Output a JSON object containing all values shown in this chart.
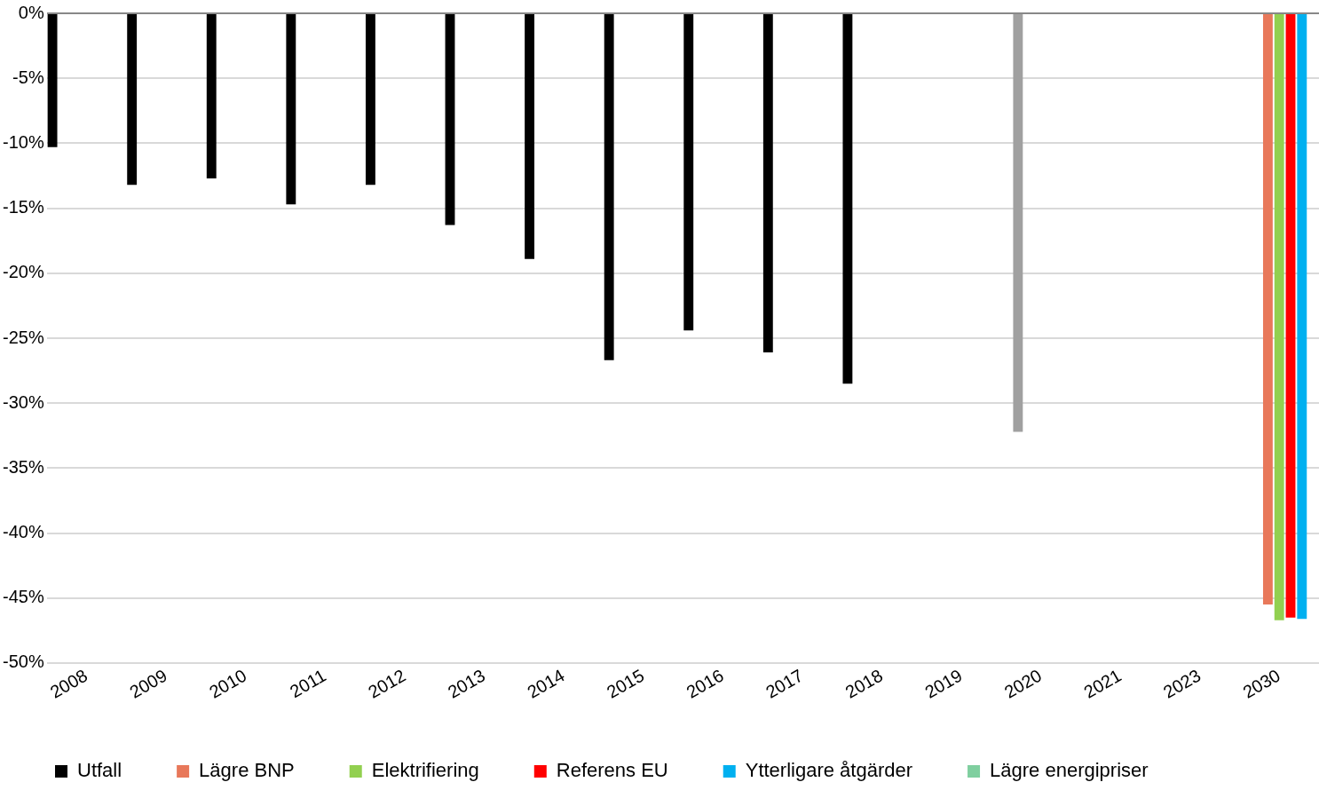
{
  "chart_data": {
    "type": "bar",
    "categories": [
      "2008",
      "2009",
      "2010",
      "2011",
      "2012",
      "2013",
      "2014",
      "2015",
      "2016",
      "2017",
      "2018",
      "2019",
      "2020",
      "2021",
      "2023",
      "2030"
    ],
    "series": [
      {
        "name": "Utfall",
        "color": "#000000",
        "values": [
          -10.3,
          -13.2,
          -12.7,
          -14.7,
          -13.2,
          -16.3,
          -18.9,
          -26.7,
          -24.4,
          -26.1,
          -28.5,
          null,
          null,
          null,
          null,
          null
        ]
      },
      {
        "color": "#a0a0a0",
        "values": [
          null,
          null,
          null,
          null,
          null,
          null,
          null,
          null,
          null,
          null,
          null,
          null,
          -32.2,
          null,
          null,
          null
        ]
      },
      {
        "name": "Lägre BNP",
        "color": "#e8785a",
        "values": [
          null,
          null,
          null,
          null,
          null,
          null,
          null,
          null,
          null,
          null,
          null,
          null,
          null,
          null,
          null,
          -45.5
        ]
      },
      {
        "name": "Elektrifiering",
        "color": "#92d050",
        "values": [
          null,
          null,
          null,
          null,
          null,
          null,
          null,
          null,
          null,
          null,
          null,
          null,
          null,
          null,
          null,
          -46.7
        ]
      },
      {
        "name": "Referens EU",
        "color": "#ff0000",
        "values": [
          null,
          null,
          null,
          null,
          null,
          null,
          null,
          null,
          null,
          null,
          null,
          null,
          null,
          null,
          null,
          -46.5
        ]
      },
      {
        "name": "Ytterligare åtgärder",
        "color": "#00b0f0",
        "values": [
          null,
          null,
          null,
          null,
          null,
          null,
          null,
          null,
          null,
          null,
          null,
          null,
          null,
          null,
          null,
          -46.6
        ]
      },
      {
        "name": "Lägre energipriser",
        "color": "#7fcf9f",
        "values": [
          null,
          null,
          null,
          null,
          null,
          null,
          null,
          null,
          null,
          null,
          null,
          null,
          null,
          null,
          null,
          null
        ]
      }
    ],
    "ylim": [
      -50,
      0
    ],
    "yticks": [
      {
        "value": -50,
        "label": "-50%"
      },
      {
        "value": -45,
        "label": "-45%"
      },
      {
        "value": -40,
        "label": "-40%"
      },
      {
        "value": -35,
        "label": "-35%"
      },
      {
        "value": -30,
        "label": "-30%"
      },
      {
        "value": -25,
        "label": "-25%"
      },
      {
        "value": -20,
        "label": "-20%"
      },
      {
        "value": -15,
        "label": "-15%"
      },
      {
        "value": -10,
        "label": "-10%"
      },
      {
        "value": -5,
        "label": "-5%"
      },
      {
        "value": 0,
        "label": "0%"
      }
    ],
    "grid": "y",
    "legend": "bottom"
  }
}
